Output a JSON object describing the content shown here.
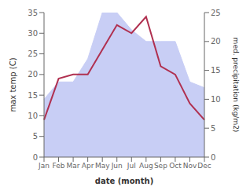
{
  "chart_data": {
    "type": "line",
    "categories": [
      "Jan",
      "Feb",
      "Mar",
      "Apr",
      "May",
      "Jun",
      "Jul",
      "Aug",
      "Sep",
      "Oct",
      "Nov",
      "Dec"
    ],
    "series": [
      {
        "type": "area",
        "color": "#c8cef5",
        "axis": "y2",
        "values": [
          10,
          13,
          13,
          17,
          25,
          25,
          22,
          20,
          20,
          20,
          13,
          12
        ]
      },
      {
        "type": "line",
        "color": "#b03050",
        "values": [
          9,
          19,
          20,
          20,
          26,
          32,
          30,
          34,
          22,
          20,
          13,
          9
        ]
      }
    ],
    "xlabel": "date (month)",
    "ylabel": "max temp (C)",
    "y2label": "med. precipitation (kg/m2)",
    "ylim": [
      0,
      35
    ],
    "yticks": [
      0,
      5,
      10,
      15,
      20,
      25,
      30,
      35
    ],
    "y2lim": [
      0,
      25
    ],
    "y2ticks": [
      0,
      5,
      10,
      15,
      20,
      25
    ],
    "grid": false
  }
}
